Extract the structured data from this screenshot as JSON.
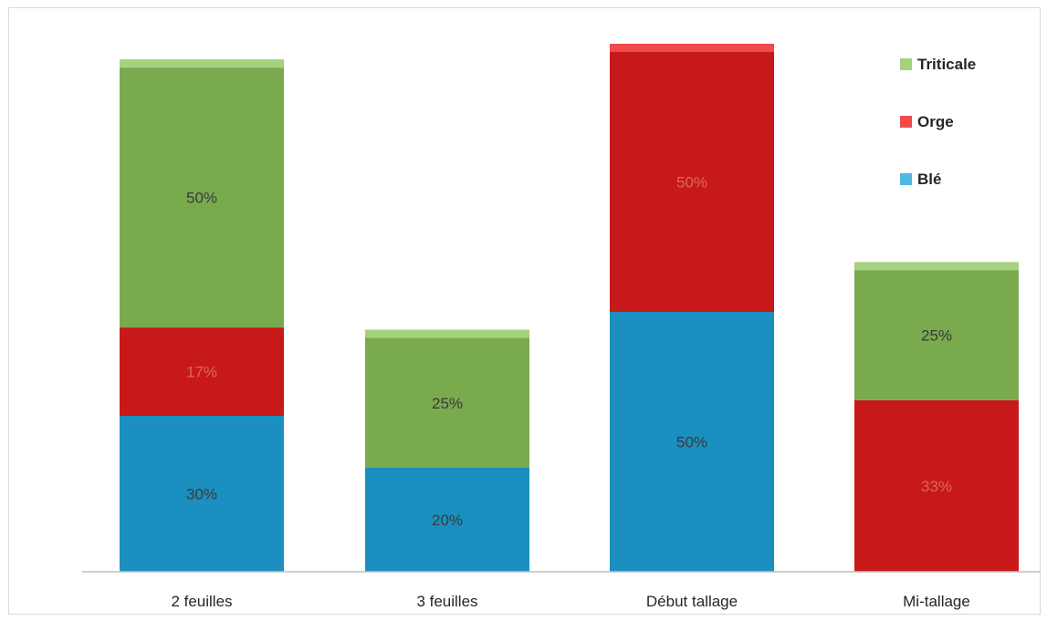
{
  "chart_data": {
    "type": "bar",
    "stacked": true,
    "categories": [
      "2 feuilles",
      "3 feuilles",
      "Début tallage",
      "Mi-tallage"
    ],
    "series": [
      {
        "name": "Blé",
        "color": "#1a8fc0",
        "values": [
          30,
          20,
          50,
          0
        ],
        "labels": [
          "30%",
          "20%",
          "50%",
          ""
        ]
      },
      {
        "name": "Orge",
        "color": "#c8191a",
        "values": [
          17,
          0,
          50,
          33
        ],
        "labels": [
          "17%",
          "",
          "50%",
          "33%"
        ]
      },
      {
        "name": "Triticale",
        "color": "#7aaa4e",
        "values": [
          50,
          25,
          0,
          25
        ],
        "labels": [
          "50%",
          "25%",
          "",
          "25%"
        ]
      }
    ],
    "legend": {
      "position": "top-right",
      "order": [
        "Triticale",
        "Orge",
        "Blé"
      ]
    },
    "grid": false,
    "title": "",
    "xlabel": "",
    "ylabel": ""
  }
}
